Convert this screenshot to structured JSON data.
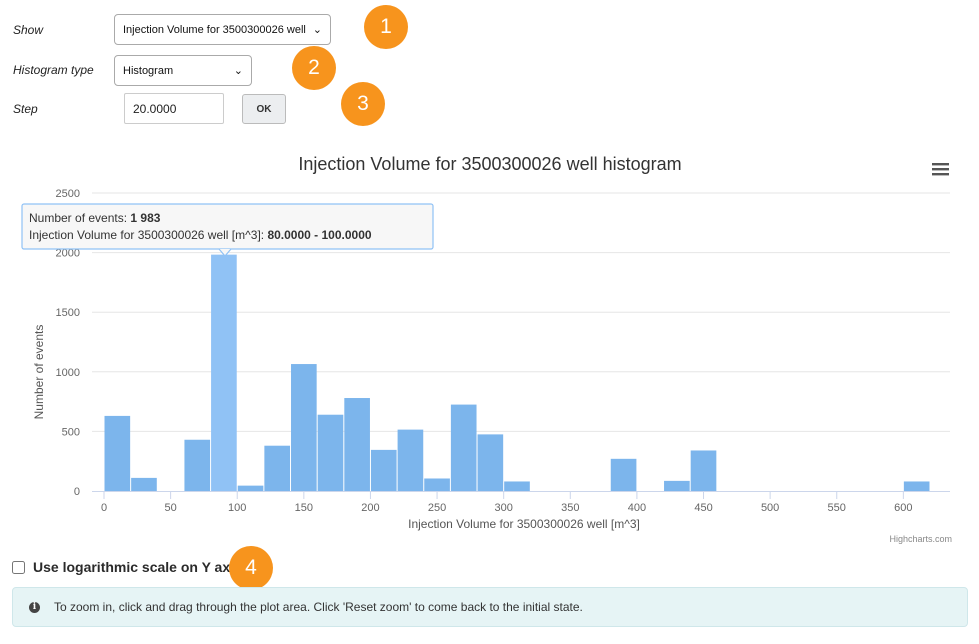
{
  "form": {
    "show_label": "Show",
    "show_value": "Injection Volume for 3500300026 well",
    "histogram_type_label": "Histogram type",
    "histogram_type_value": "Histogram",
    "step_label": "Step",
    "step_value": "20.0000",
    "ok_label": "OK"
  },
  "badges": [
    "1",
    "2",
    "3",
    "4"
  ],
  "chart": {
    "menu_icon": "hamburger-menu-icon",
    "credits": "Highcharts.com",
    "tooltip": {
      "line1_prefix": "Number of events: ",
      "line1_value": "1 983",
      "line2_prefix": "Injection Volume for 3500300026 well [m^3]: ",
      "line2_value": "80.0000 - 100.0000"
    }
  },
  "chart_data": {
    "type": "bar",
    "title": "Injection Volume for 3500300026 well histogram",
    "xlabel": "Injection Volume for 3500300026 well [m^3]",
    "ylabel": "Number of events",
    "xlim": [
      0,
      620
    ],
    "ylim": [
      0,
      2500
    ],
    "xticks": [
      0,
      50,
      100,
      150,
      200,
      250,
      300,
      350,
      400,
      450,
      500,
      550,
      600
    ],
    "yticks": [
      0,
      500,
      1000,
      1500,
      2000,
      2500
    ],
    "bin_width": 20,
    "bins": [
      {
        "start": 0,
        "value": 630
      },
      {
        "start": 20,
        "value": 110
      },
      {
        "start": 60,
        "value": 430
      },
      {
        "start": 80,
        "value": 1983,
        "highlighted": true
      },
      {
        "start": 100,
        "value": 45
      },
      {
        "start": 120,
        "value": 380
      },
      {
        "start": 140,
        "value": 1065
      },
      {
        "start": 160,
        "value": 640
      },
      {
        "start": 180,
        "value": 780
      },
      {
        "start": 200,
        "value": 345
      },
      {
        "start": 220,
        "value": 515
      },
      {
        "start": 240,
        "value": 105
      },
      {
        "start": 260,
        "value": 725
      },
      {
        "start": 280,
        "value": 475
      },
      {
        "start": 300,
        "value": 80
      },
      {
        "start": 380,
        "value": 270
      },
      {
        "start": 420,
        "value": 85
      },
      {
        "start": 440,
        "value": 340
      },
      {
        "start": 600,
        "value": 80
      }
    ],
    "bar_color": "#7cb5ec",
    "highlight_color": "#90c2f5",
    "grid": true
  },
  "log_scale": {
    "label": "Use logarithmic scale on Y axis",
    "checked": false
  },
  "info": {
    "icon": "info-icon",
    "text": "To zoom in, click and drag through the plot area. Click 'Reset zoom' to come back to the initial state."
  },
  "colors": {
    "badge": "#f7941d",
    "info_background": "#e6f4f5"
  }
}
